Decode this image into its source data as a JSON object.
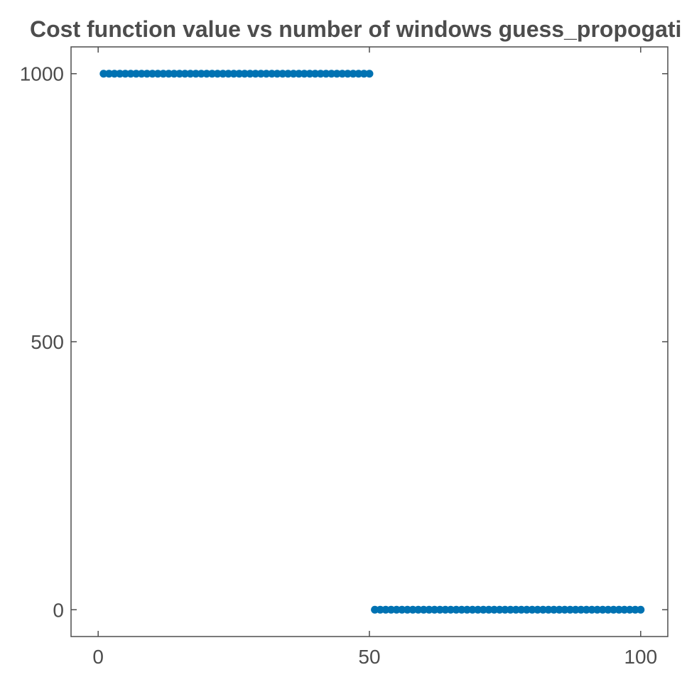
{
  "chart_data": {
    "type": "scatter",
    "title": "Cost function value vs number of windows guess_propogati",
    "xlabel": "",
    "ylabel": "",
    "xlim": [
      -5,
      105
    ],
    "ylim": [
      -50,
      1050
    ],
    "xticks": [
      0,
      50,
      100
    ],
    "xtick_labels": [
      "0",
      "50",
      "100"
    ],
    "yticks": [
      0,
      500,
      1000
    ],
    "ytick_labels": [
      "0",
      "500",
      "1000"
    ],
    "grid": false,
    "legend": "none",
    "colors": {
      "marker": "#0072b2",
      "axis": "#4d4d4d",
      "text": "#4d4d4d"
    },
    "series": [
      {
        "x": [
          1,
          2,
          3,
          4,
          5,
          6,
          7,
          8,
          9,
          10,
          11,
          12,
          13,
          14,
          15,
          16,
          17,
          18,
          19,
          20,
          21,
          22,
          23,
          24,
          25,
          26,
          27,
          28,
          29,
          30,
          31,
          32,
          33,
          34,
          35,
          36,
          37,
          38,
          39,
          40,
          41,
          42,
          43,
          44,
          45,
          46,
          47,
          48,
          49,
          50,
          51,
          52,
          53,
          54,
          55,
          56,
          57,
          58,
          59,
          60,
          61,
          62,
          63,
          64,
          65,
          66,
          67,
          68,
          69,
          70,
          71,
          72,
          73,
          74,
          75,
          76,
          77,
          78,
          79,
          80,
          81,
          82,
          83,
          84,
          85,
          86,
          87,
          88,
          89,
          90,
          91,
          92,
          93,
          94,
          95,
          96,
          97,
          98,
          99,
          100
        ],
        "y": [
          1000,
          1000,
          1000,
          1000,
          1000,
          1000,
          1000,
          1000,
          1000,
          1000,
          1000,
          1000,
          1000,
          1000,
          1000,
          1000,
          1000,
          1000,
          1000,
          1000,
          1000,
          1000,
          1000,
          1000,
          1000,
          1000,
          1000,
          1000,
          1000,
          1000,
          1000,
          1000,
          1000,
          1000,
          1000,
          1000,
          1000,
          1000,
          1000,
          1000,
          1000,
          1000,
          1000,
          1000,
          1000,
          1000,
          1000,
          1000,
          1000,
          1000,
          0,
          0,
          0,
          0,
          0,
          0,
          0,
          0,
          0,
          0,
          0,
          0,
          0,
          0,
          0,
          0,
          0,
          0,
          0,
          0,
          0,
          0,
          0,
          0,
          0,
          0,
          0,
          0,
          0,
          0,
          0,
          0,
          0,
          0,
          0,
          0,
          0,
          0,
          0,
          0,
          0,
          0,
          0,
          0,
          0,
          0,
          0,
          0,
          0,
          0
        ]
      }
    ]
  }
}
